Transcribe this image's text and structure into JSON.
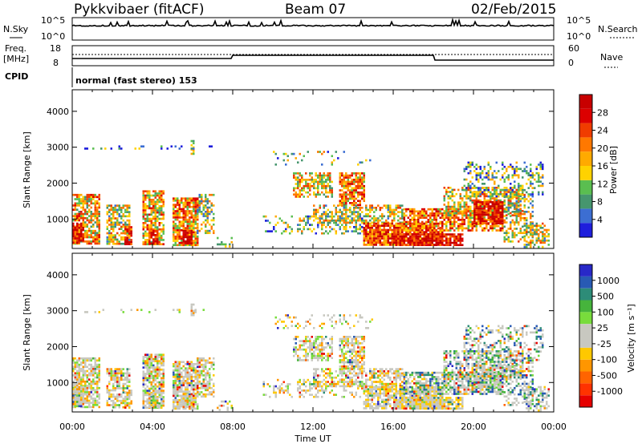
{
  "header": {
    "station": "Pykkvibaer (fitACF)",
    "beam": "Beam 07",
    "date": "02/Feb/2015"
  },
  "top_panels": {
    "nsky_label": "N.Sky",
    "nsky_ticks": [
      "10^5",
      "10^0"
    ],
    "nsearch_label": "N.Search",
    "nsearch_ticks": [
      "10^5",
      "10^0"
    ],
    "freq_label": "Freq.",
    "freq_unit": "[MHz]",
    "freq_ticks": [
      "18",
      "8"
    ],
    "nave_label": "Nave",
    "nave_ticks": [
      "60",
      "0"
    ],
    "cpid_label": "CPID",
    "cpid_value": "normal (fast stereo) 153"
  },
  "chart_data": [
    {
      "type": "heatmap",
      "name": "power",
      "ylabel": "Slant Range [km]",
      "xlabel": "Time UT",
      "x_ticks": [
        "00:00",
        "04:00",
        "08:00",
        "12:00",
        "16:00",
        "20:00",
        "00:00"
      ],
      "x_range_hours": [
        0,
        24
      ],
      "y_ticks": [
        1000,
        2000,
        3000,
        4000
      ],
      "y_range_km": [
        180,
        4600
      ],
      "colorbar": {
        "label": "Power [dB]",
        "ticks": [
          "4",
          "8",
          "12",
          "16",
          "20",
          "24",
          "28"
        ],
        "range": [
          0,
          30
        ],
        "colors": [
          "#1e1edc",
          "#3c6ed2",
          "#46966e",
          "#5abe50",
          "#ffd200",
          "#ffaa00",
          "#ff7800",
          "#f03c00",
          "#dc0000",
          "#c80000"
        ]
      }
    },
    {
      "type": "heatmap",
      "name": "velocity",
      "ylabel": "Slant Range [km]",
      "xlabel": "Time UT",
      "x_ticks": [
        "00:00",
        "04:00",
        "08:00",
        "12:00",
        "16:00",
        "20:00",
        "00:00"
      ],
      "x_range_hours": [
        0,
        24
      ],
      "y_ticks": [
        1000,
        2000,
        3000,
        4000
      ],
      "y_range_km": [
        180,
        4600
      ],
      "colorbar": {
        "label": "Velocity [m s⁻¹]",
        "ticks": [
          "1000",
          "500",
          "100",
          "25",
          "-25",
          "-100",
          "-500",
          "-1000"
        ],
        "colors": [
          "#2828c8",
          "#285ab4",
          "#2d8c78",
          "#46b43c",
          "#78dc3c",
          "#c8c8c0",
          "#c8c8c0",
          "#ffc800",
          "#ff9600",
          "#ff6400",
          "#ff3200",
          "#e60000"
        ]
      }
    }
  ],
  "xaxis": {
    "label": "Time UT"
  }
}
